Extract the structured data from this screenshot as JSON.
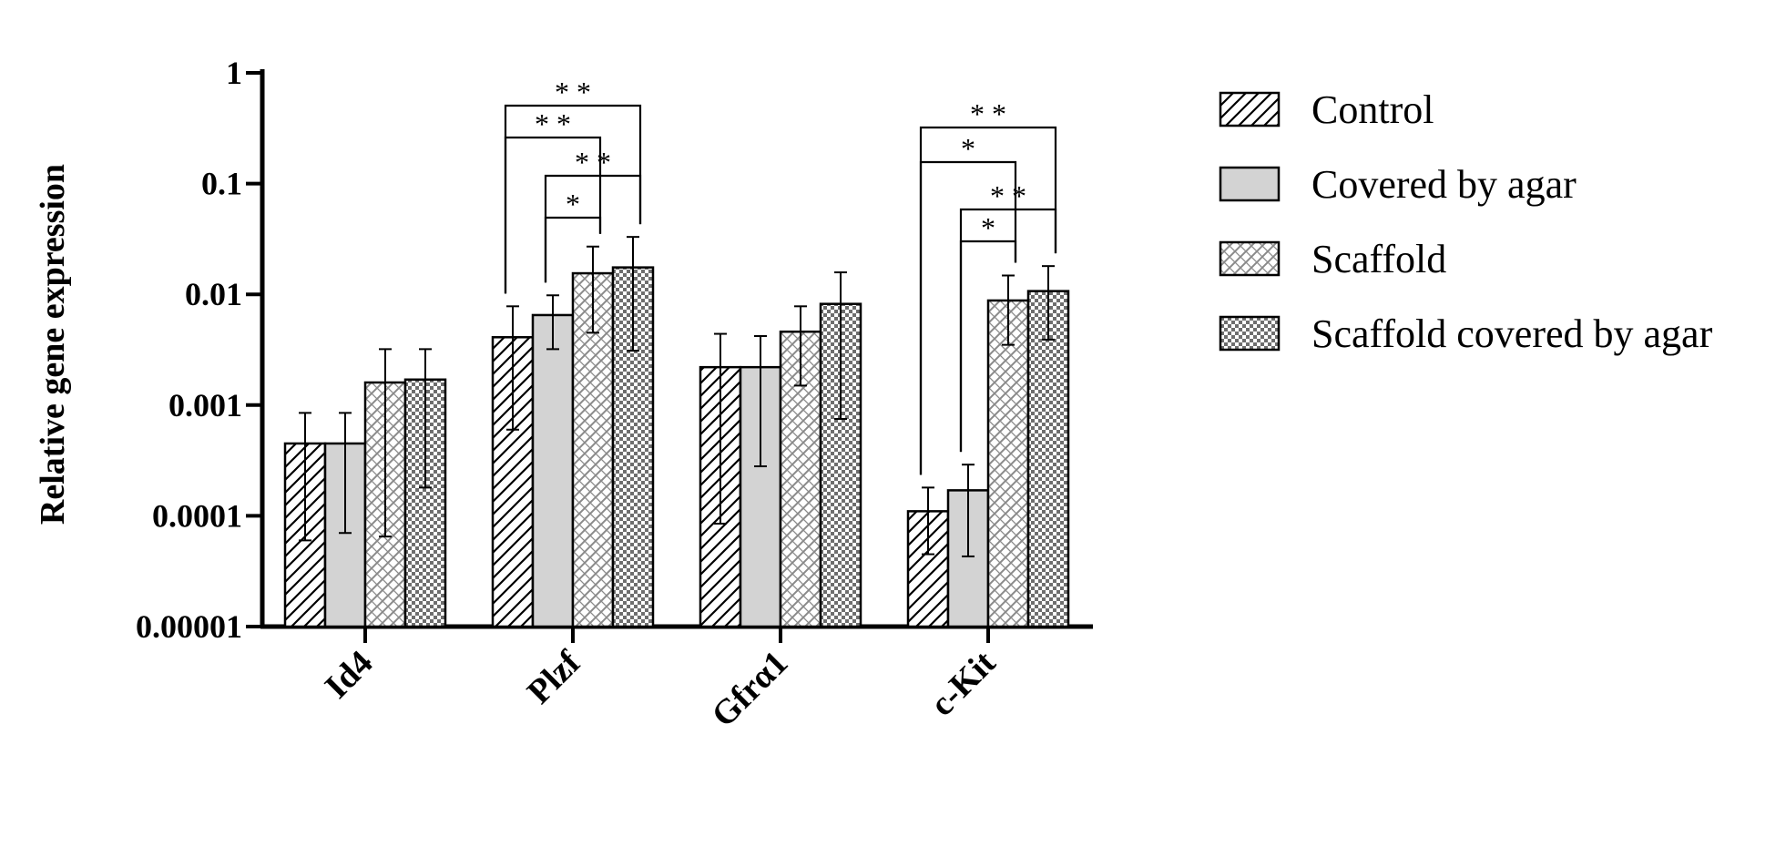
{
  "chart_data": {
    "type": "bar",
    "ylabel": "Relative gene expression",
    "yscale": "log",
    "ylim": [
      1e-05,
      1
    ],
    "y_ticks": [
      "0.00001",
      "0.0001",
      "0.001",
      "0.01",
      "0.1",
      "1"
    ],
    "y_tick_values": [
      1e-05,
      0.0001,
      0.001,
      0.01,
      0.1,
      1
    ],
    "categories": [
      "Id4",
      "Plzf",
      "Gfrα1",
      "c-Kit"
    ],
    "legend_position": "right",
    "grid": false,
    "series": [
      {
        "name": "Control",
        "pattern": "diagonal-hatch",
        "fill": "#ffffff",
        "values": [
          0.00045,
          0.0041,
          0.0022,
          0.00011
        ],
        "err_low": [
          6e-05,
          0.0006,
          8.5e-05,
          4.5e-05
        ],
        "err_high": [
          0.00085,
          0.0078,
          0.0044,
          0.00018
        ]
      },
      {
        "name": "Covered by agar",
        "pattern": "solid",
        "fill": "#d3d3d3",
        "values": [
          0.00045,
          0.0065,
          0.0022,
          0.00017
        ],
        "err_low": [
          7e-05,
          0.0032,
          0.00028,
          4.3e-05
        ],
        "err_high": [
          0.00085,
          0.0098,
          0.0042,
          0.00029
        ]
      },
      {
        "name": "Scaffold",
        "pattern": "diagonal-crosshatch",
        "fill": "#ffffff",
        "values": [
          0.0016,
          0.0155,
          0.0046,
          0.0088
        ],
        "err_low": [
          6.5e-05,
          0.0045,
          0.0015,
          0.0035
        ],
        "err_high": [
          0.0032,
          0.027,
          0.0078,
          0.0148
        ]
      },
      {
        "name": "Scaffold covered by agar",
        "pattern": "checker",
        "fill": "#ffffff",
        "values": [
          0.0017,
          0.0175,
          0.0082,
          0.0107
        ],
        "err_low": [
          0.00018,
          0.0031,
          0.00075,
          0.0039
        ],
        "err_high": [
          0.0032,
          0.033,
          0.0158,
          0.018
        ]
      }
    ],
    "significance": [
      {
        "category": "Plzf",
        "from": "Control",
        "to": "Scaffold covered by agar",
        "label": "**"
      },
      {
        "category": "Plzf",
        "from": "Control",
        "to": "Scaffold",
        "label": "**"
      },
      {
        "category": "Plzf",
        "from": "Covered by agar",
        "to": "Scaffold covered by agar",
        "label": "**"
      },
      {
        "category": "Plzf",
        "from": "Covered by agar",
        "to": "Scaffold",
        "label": "*"
      },
      {
        "category": "c-Kit",
        "from": "Control",
        "to": "Scaffold covered by agar",
        "label": "**"
      },
      {
        "category": "c-Kit",
        "from": "Control",
        "to": "Scaffold",
        "label": "*"
      },
      {
        "category": "c-Kit",
        "from": "Covered by agar",
        "to": "Scaffold covered by agar",
        "label": "**"
      },
      {
        "category": "c-Kit",
        "from": "Covered by agar",
        "to": "Scaffold",
        "label": "*"
      }
    ]
  }
}
